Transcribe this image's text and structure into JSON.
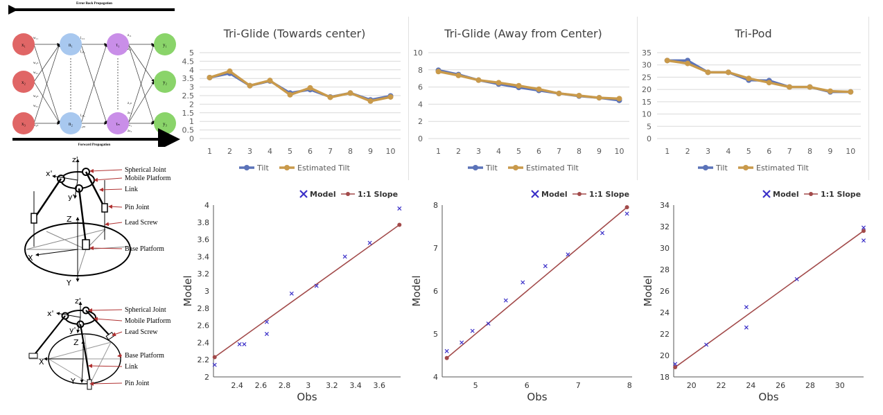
{
  "nn": {
    "top_label": "Error Back Propagation",
    "bottom_label": "Forward Propagation",
    "colors": {
      "input": "#e06666",
      "hidden1": "#a8c8ef",
      "hidden2": "#c98ee8",
      "output": "#8ad46a"
    },
    "input_nodes": [
      "x₁",
      "x₂",
      "x₃"
    ],
    "hidden1_nodes": [
      "n₁",
      "n₂"
    ],
    "hidden2_nodes": [
      "τ₁",
      "τₙ"
    ],
    "output_nodes": [
      "y₁",
      "y₂",
      "y₃"
    ],
    "weights": [
      "w₁₁",
      "w₁ₙ",
      "w₂₁",
      "w₂ₙ",
      "w₃₁",
      "w₃ₙ",
      "l₁₁₁",
      "l₁ₙ₁",
      "l₁ₙ₁",
      "l₁ₙₙ",
      "z₁₁",
      "z₁₁",
      "z₁ₙ",
      "zₙ₁",
      "zₙ₁",
      "zₙ₃"
    ]
  },
  "mech1": {
    "labels": [
      "Spherical Joint",
      "Mobile Platform",
      "Link",
      "Pin Joint",
      "Lead Screw",
      "Base Platform"
    ],
    "axes": [
      "z'",
      "x'",
      "y'",
      "Z",
      "X",
      "Y"
    ]
  },
  "mech2": {
    "labels": [
      "Spherical Joint",
      "Mobile Platform",
      "Lead Screw",
      "Base Platform",
      "Link",
      "Pin Joint"
    ],
    "axes": [
      "z'",
      "x'",
      "y'",
      "Z",
      "X",
      "Y"
    ]
  },
  "line_legend": {
    "tilt": "Tilt",
    "estimated": "Estimated Tilt"
  },
  "scatter_legend": {
    "model": "Model",
    "slope": "1:1 Slope"
  },
  "colors": {
    "tilt": "#5b73b9",
    "estimated": "#c99a4b",
    "grid": "#d9d9d9",
    "model": "#3a2fc8",
    "slope": "#a24a4a"
  },
  "chart_data": [
    {
      "type": "line",
      "title": "Tri-Glide (Towards center)",
      "categories": [
        1,
        2,
        3,
        4,
        5,
        6,
        7,
        8,
        9,
        10
      ],
      "ylim": [
        0,
        5
      ],
      "yticks": [
        0,
        0.5,
        1,
        1.5,
        2,
        2.5,
        3,
        3.5,
        4,
        4.5,
        5
      ],
      "series": [
        {
          "name": "Tilt",
          "values": [
            3.55,
            3.8,
            3.08,
            3.35,
            2.65,
            2.85,
            2.42,
            2.65,
            2.25,
            2.48
          ]
        },
        {
          "name": "Estimated Tilt",
          "values": [
            3.55,
            3.92,
            3.08,
            3.38,
            2.55,
            2.95,
            2.4,
            2.65,
            2.18,
            2.42
          ]
        }
      ]
    },
    {
      "type": "line",
      "title": "Tri-Glide (Away from Center)",
      "categories": [
        1,
        2,
        3,
        4,
        5,
        6,
        7,
        8,
        9,
        10
      ],
      "ylim": [
        0,
        10
      ],
      "yticks": [
        0,
        2,
        4,
        6,
        8,
        10
      ],
      "series": [
        {
          "name": "Tilt",
          "values": [
            7.95,
            7.45,
            6.8,
            6.35,
            5.95,
            5.6,
            5.25,
            4.95,
            4.75,
            4.45
          ]
        },
        {
          "name": "Estimated Tilt",
          "values": [
            7.8,
            7.35,
            6.8,
            6.5,
            6.15,
            5.75,
            5.25,
            5.0,
            4.75,
            4.65
          ]
        }
      ]
    },
    {
      "type": "line",
      "title": "Tri-Pod",
      "categories": [
        1,
        2,
        3,
        4,
        5,
        6,
        7,
        8,
        9,
        10
      ],
      "ylim": [
        0,
        35
      ],
      "yticks": [
        0,
        5,
        10,
        15,
        20,
        25,
        30,
        35
      ],
      "series": [
        {
          "name": "Tilt",
          "values": [
            31.8,
            31.8,
            27.0,
            27.0,
            23.8,
            23.6,
            21.0,
            21.0,
            19.0,
            19.0
          ]
        },
        {
          "name": "Estimated Tilt",
          "values": [
            31.8,
            30.6,
            27.0,
            27.0,
            24.5,
            22.8,
            21.0,
            21.0,
            19.3,
            19.0
          ]
        }
      ]
    },
    {
      "type": "scatter",
      "xlabel": "Obs",
      "ylabel": "Model",
      "xlim": [
        2.2,
        3.78
      ],
      "ylim": [
        2,
        4
      ],
      "xticks": [
        2.4,
        2.6,
        2.8,
        3,
        3.2,
        3.4,
        3.6
      ],
      "yticks": [
        2,
        2.2,
        2.4,
        2.6,
        2.8,
        3,
        3.2,
        3.4,
        3.6,
        3.8,
        4
      ],
      "points": [
        [
          2.21,
          2.14
        ],
        [
          2.42,
          2.38
        ],
        [
          2.46,
          2.38
        ],
        [
          2.65,
          2.64
        ],
        [
          2.65,
          2.5
        ],
        [
          2.86,
          2.97
        ],
        [
          3.07,
          3.06
        ],
        [
          3.31,
          3.4
        ],
        [
          3.52,
          3.56
        ],
        [
          3.77,
          3.96
        ]
      ],
      "slope_line": [
        [
          2.21,
          2.23
        ],
        [
          3.77,
          3.77
        ]
      ]
    },
    {
      "type": "scatter",
      "xlabel": "Obs",
      "ylabel": "Model",
      "xlim": [
        4.35,
        8.05
      ],
      "ylim": [
        4,
        8
      ],
      "xticks": [
        5,
        6,
        7,
        8
      ],
      "yticks": [
        4,
        5,
        6,
        7,
        8
      ],
      "points": [
        [
          4.44,
          4.6
        ],
        [
          4.73,
          4.8
        ],
        [
          4.94,
          5.07
        ],
        [
          5.25,
          5.24
        ],
        [
          5.59,
          5.78
        ],
        [
          5.92,
          6.2
        ],
        [
          6.36,
          6.58
        ],
        [
          6.8,
          6.85
        ],
        [
          7.47,
          7.35
        ],
        [
          7.95,
          7.8
        ]
      ],
      "slope_line": [
        [
          4.44,
          4.44
        ],
        [
          7.95,
          7.95
        ]
      ]
    },
    {
      "type": "scatter",
      "xlabel": "Obs",
      "ylabel": "Model",
      "xlim": [
        18.8,
        31.6
      ],
      "ylim": [
        18,
        34
      ],
      "xticks": [
        20,
        22,
        24,
        26,
        28,
        30
      ],
      "yticks": [
        18,
        20,
        22,
        24,
        26,
        28,
        30,
        32,
        34
      ],
      "points": [
        [
          18.9,
          19.2
        ],
        [
          21.0,
          21.0
        ],
        [
          23.7,
          24.5
        ],
        [
          23.7,
          22.6
        ],
        [
          27.1,
          27.1
        ],
        [
          31.6,
          31.9
        ],
        [
          31.6,
          30.7
        ]
      ],
      "slope_line": [
        [
          18.9,
          18.9
        ],
        [
          31.6,
          31.6
        ]
      ]
    }
  ]
}
